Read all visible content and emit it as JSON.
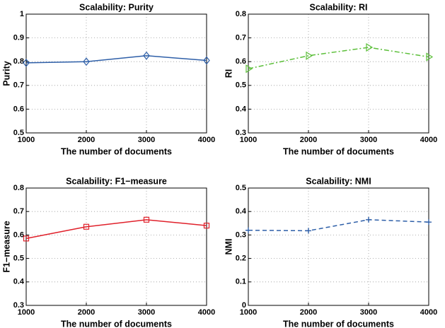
{
  "chart_data": [
    {
      "type": "line",
      "title": "Scalability: Purity",
      "xlabel": "The number of documents",
      "ylabel": "Purity",
      "x": [
        1000,
        2000,
        3000,
        4000
      ],
      "values": [
        0.795,
        0.8,
        0.825,
        0.805
      ],
      "color": "#2e5fa8",
      "line_style": "solid",
      "marker": "diamond",
      "xlim": [
        1000,
        4000
      ],
      "xticks": [
        1000,
        2000,
        3000,
        4000
      ],
      "ylim": [
        0.5,
        1
      ],
      "yticks": [
        0.5,
        0.6,
        0.7,
        0.8,
        0.9,
        1
      ],
      "grid": true
    },
    {
      "type": "line",
      "title": "Scalability: RI",
      "xlabel": "The number of documents",
      "ylabel": "RI",
      "x": [
        1000,
        2000,
        3000,
        4000
      ],
      "values": [
        0.57,
        0.625,
        0.66,
        0.62
      ],
      "color": "#5cbf3a",
      "line_style": "dashdot",
      "marker": "triangle-right",
      "xlim": [
        1000,
        4000
      ],
      "xticks": [
        1000,
        2000,
        3000,
        4000
      ],
      "ylim": [
        0.3,
        0.8
      ],
      "yticks": [
        0.3,
        0.4,
        0.5,
        0.6,
        0.7,
        0.8
      ],
      "grid": true
    },
    {
      "type": "line",
      "title": "Scalability: F1−measure",
      "xlabel": "The number of documents",
      "ylabel": "F1−measure",
      "x": [
        1000,
        2000,
        3000,
        4000
      ],
      "values": [
        0.585,
        0.635,
        0.665,
        0.64
      ],
      "color": "#e0202a",
      "line_style": "solid",
      "marker": "square",
      "xlim": [
        1000,
        4000
      ],
      "xticks": [
        1000,
        2000,
        3000,
        4000
      ],
      "ylim": [
        0.3,
        0.8
      ],
      "yticks": [
        0.3,
        0.4,
        0.5,
        0.6,
        0.7,
        0.8
      ],
      "grid": true
    },
    {
      "type": "line",
      "title": "Scalability: NMI",
      "xlabel": "The number of documents",
      "ylabel": "NMI",
      "x": [
        1000,
        2000,
        3000,
        4000
      ],
      "values": [
        0.32,
        0.318,
        0.365,
        0.355
      ],
      "color": "#2e5fa8",
      "line_style": "dashed",
      "marker": "plus",
      "xlim": [
        1000,
        4000
      ],
      "xticks": [
        1000,
        2000,
        3000,
        4000
      ],
      "ylim": [
        0,
        0.5
      ],
      "yticks": [
        0,
        0.1,
        0.2,
        0.3,
        0.4,
        0.5
      ],
      "grid": true
    }
  ]
}
